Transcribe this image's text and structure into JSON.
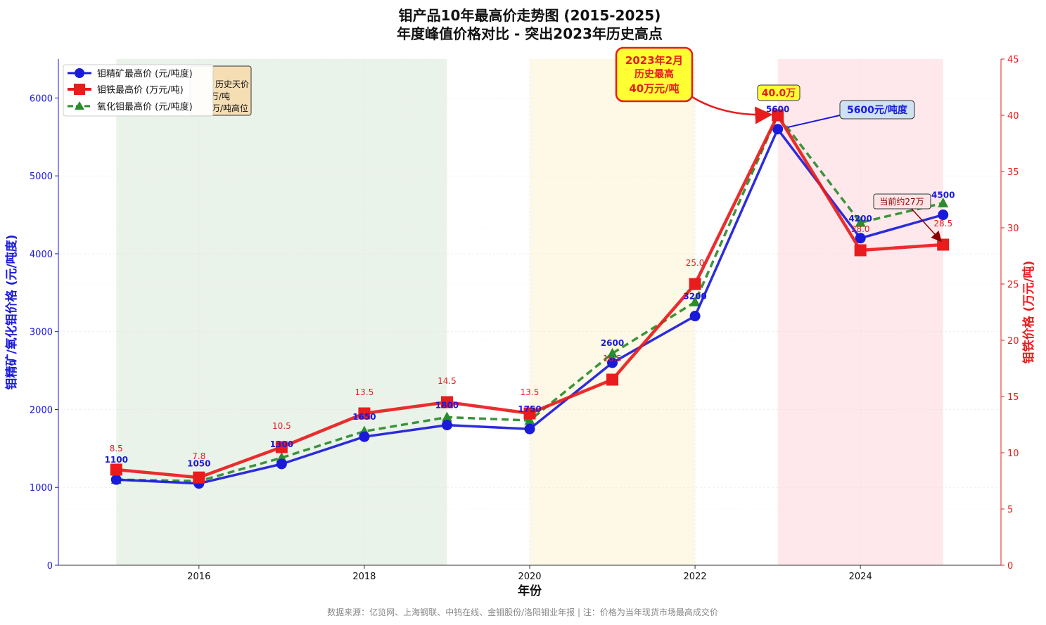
{
  "chart_data": {
    "type": "line",
    "title": "钼产品10年最高价走势图 (2015-2025)",
    "subtitle": "年度峰值价格对比 - 突出2023年历史高点",
    "xlabel": "年份",
    "ylabel_left": "钼精矿/氧化钼价格 (元/吨度)",
    "ylabel_right": "钼铁价格 (万元/吨)",
    "x": [
      2015,
      2016,
      2017,
      2018,
      2019,
      2020,
      2021,
      2022,
      2023,
      2024,
      2025
    ],
    "x_ticks": [
      2016,
      2018,
      2020,
      2022,
      2024
    ],
    "xlim": [
      2014.3,
      2025.7
    ],
    "ylim_left": [
      0,
      6500
    ],
    "y_ticks_left": [
      0,
      1000,
      2000,
      3000,
      4000,
      5000,
      6000
    ],
    "ylim_right": [
      0,
      45
    ],
    "y_ticks_right": [
      0,
      5,
      10,
      15,
      20,
      25,
      30,
      35,
      40,
      45
    ],
    "grid": true,
    "legend_position": "top-left",
    "series": [
      {
        "name": "钼精矿最高价 (元/吨度)",
        "axis": "left",
        "color": "#1a1adb",
        "marker": "circle",
        "line": "solid",
        "values": [
          1100,
          1050,
          1300,
          1650,
          1800,
          1750,
          2600,
          3200,
          5600,
          4200,
          4500
        ],
        "labels": [
          "1100",
          "1050",
          "1300",
          "1650",
          "1800",
          "1750",
          "2600",
          "3200",
          "5600",
          "4200",
          "4500"
        ]
      },
      {
        "name": "钼铁最高价 (万元/吨)",
        "axis": "right",
        "color": "#e81c1c",
        "marker": "square",
        "line": "solid",
        "values": [
          8.5,
          7.8,
          10.5,
          13.5,
          14.5,
          13.5,
          16.5,
          25.0,
          40.0,
          28.0,
          28.5
        ],
        "labels": [
          "8.5",
          "7.8",
          "10.5",
          "13.5",
          "14.5",
          "13.5",
          "16.5",
          "25.0",
          "40.0",
          "28.0",
          "28.5"
        ]
      },
      {
        "name": "氧化钼最高价 (元/吨度)",
        "axis": "left",
        "color": "#2a8c2a",
        "marker": "triangle",
        "line": "dashed",
        "values": [
          1100,
          1080,
          1380,
          1720,
          1900,
          1860,
          2720,
          3380,
          5780,
          4400,
          4650
        ]
      }
    ],
    "bands": [
      {
        "from": 2015,
        "to": 2019,
        "color": "#2e8b2e",
        "opacity": 0.1
      },
      {
        "from": 2020,
        "to": 2022,
        "color": "#f5c518",
        "opacity": 0.1
      },
      {
        "from": 2023,
        "to": 2025,
        "color": "#ff4d6d",
        "opacity": 0.13
      }
    ],
    "annotations": {
      "peak_callout": {
        "lines": [
          "2023年2月",
          "历史最高",
          "40万元/吨"
        ],
        "x": 2023,
        "y_right": 40
      },
      "peak_value_box": {
        "text": "40.0万"
      },
      "peak_unit_box": {
        "text": "5600元/吨度"
      },
      "current_note": {
        "text": "当前约27万"
      },
      "hidden_note_lines": [
        "历史天价",
        "万/吨",
        "万/吨高位"
      ]
    }
  },
  "footer": "数据来源：亿览网、上海钢联、中钨在线、金钼股份/洛阳钼业年报 | 注：价格为当年现货市场最高成交价"
}
